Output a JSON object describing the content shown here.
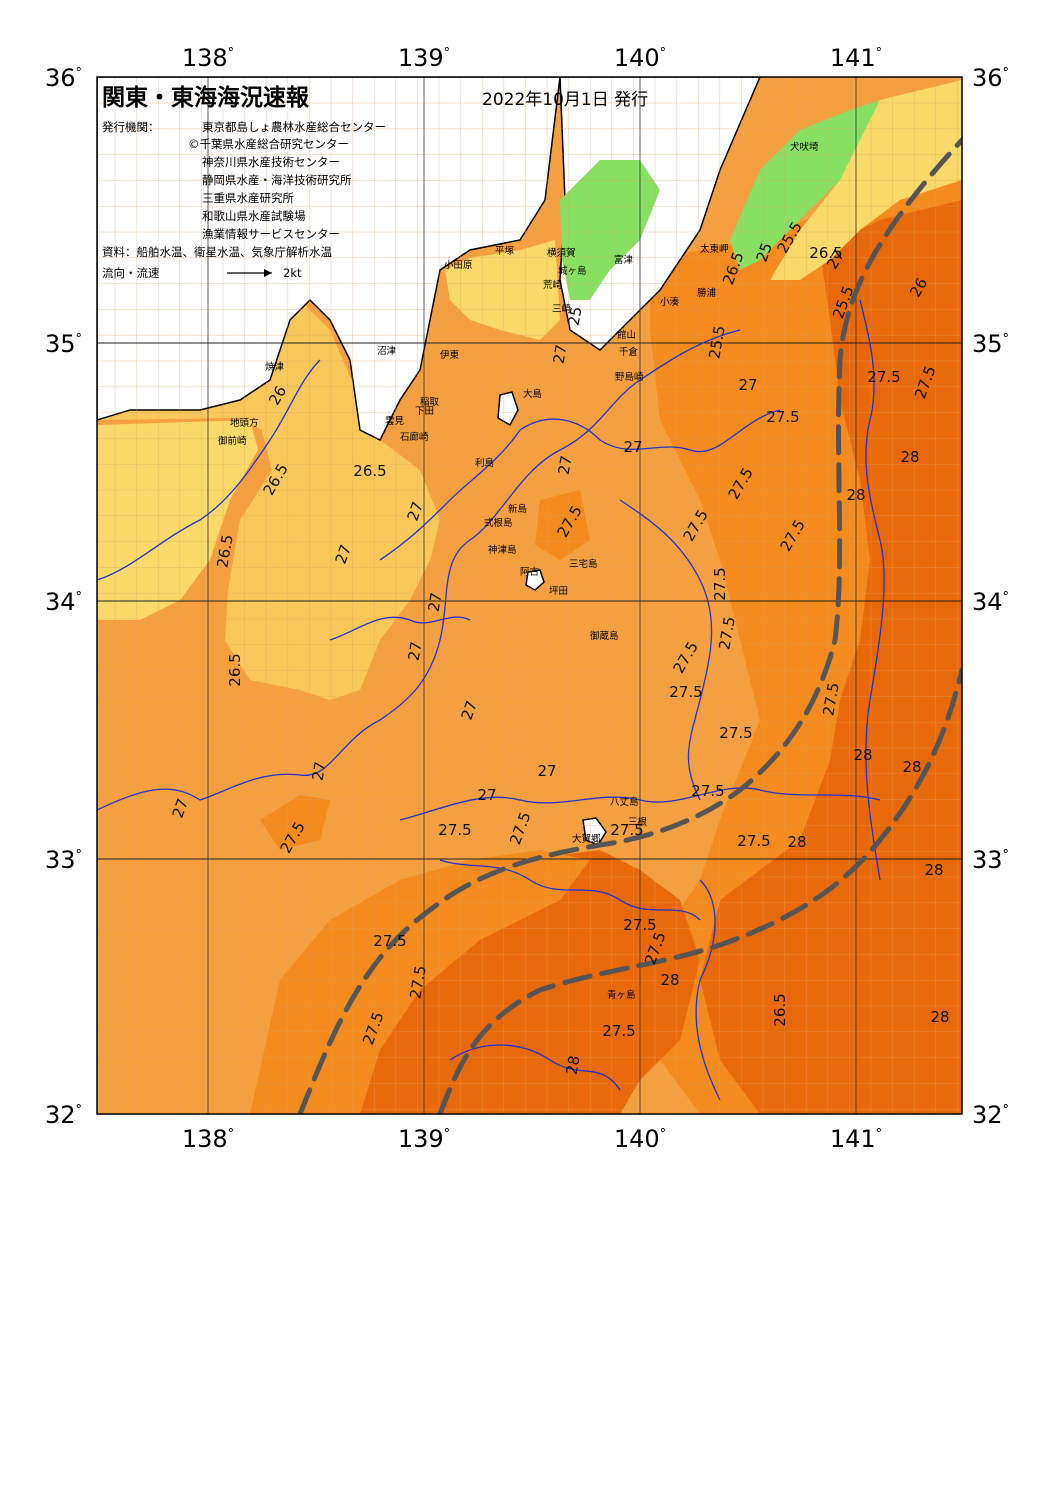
{
  "title": "関東・東海海況速報",
  "issue_date": "2022年10月1日 発行",
  "issuer_label": "発行機関：",
  "issuers": [
    "東京都島しょ農林水産総合センター",
    "©千葉県水産総合研究センター",
    "神奈川県水産技術センター",
    "静岡県水産・海洋技術研究所",
    "三重県水産研究所",
    "和歌山県水産試験場",
    "漁業情報サービスセンター"
  ],
  "sources": "資料：船舶水温、衛星水温、気象庁解析水温",
  "flow_legend": {
    "label": "流向・流速",
    "value": "2kt"
  },
  "lon_labels": [
    "138",
    "139",
    "140",
    "141"
  ],
  "lat_labels": [
    "36",
    "35",
    "34",
    "33",
    "32"
  ],
  "colors": {
    "t_25": "#88e063",
    "t_26": "#f8d96a",
    "t_26_5": "#f8c85a",
    "t_27": "#f5a040",
    "t_27_5": "#f38b1e",
    "t_28": "#e8690a",
    "land": "#ffffff",
    "isotherm": "#2233cc",
    "current_axis": "#555555"
  },
  "isotherm_labels": [
    "26",
    "26.5",
    "26.5",
    "26.5",
    "26.5",
    "26.5",
    "27",
    "27",
    "27",
    "27",
    "27",
    "27",
    "27",
    "27",
    "27",
    "27",
    "27",
    "27",
    "27",
    "27.5",
    "27.5",
    "27.5",
    "27.5",
    "27.5",
    "27.5",
    "27.5",
    "27.5",
    "27.5",
    "27.5",
    "27.5",
    "27.5",
    "27.5",
    "27.5",
    "27.5",
    "27.5",
    "27.5",
    "28",
    "28",
    "28",
    "28",
    "28",
    "28",
    "28",
    "28",
    "28",
    "26.5",
    "27",
    "25.5",
    "25",
    "25",
    "25.5",
    "26.5",
    "25.5",
    "26",
    "27.5",
    "27.5",
    "27.5"
  ],
  "place_names": [
    "犬吠埼",
    "太東岬",
    "勝浦",
    "小湊",
    "富津",
    "横須賀",
    "平塚",
    "小田原",
    "城ヶ島",
    "荒崎",
    "三崎",
    "館山",
    "千倉",
    "野島崎",
    "大島",
    "利島",
    "新島",
    "式根島",
    "神津島",
    "三宅島",
    "御蔵島",
    "八丈島",
    "三根",
    "大賀郷",
    "青ヶ島",
    "沼津",
    "伊東",
    "稲取",
    "下田",
    "石廊崎",
    "雲見",
    "焼津",
    "御前崎",
    "地頭方",
    "阿古",
    "坪田"
  ]
}
